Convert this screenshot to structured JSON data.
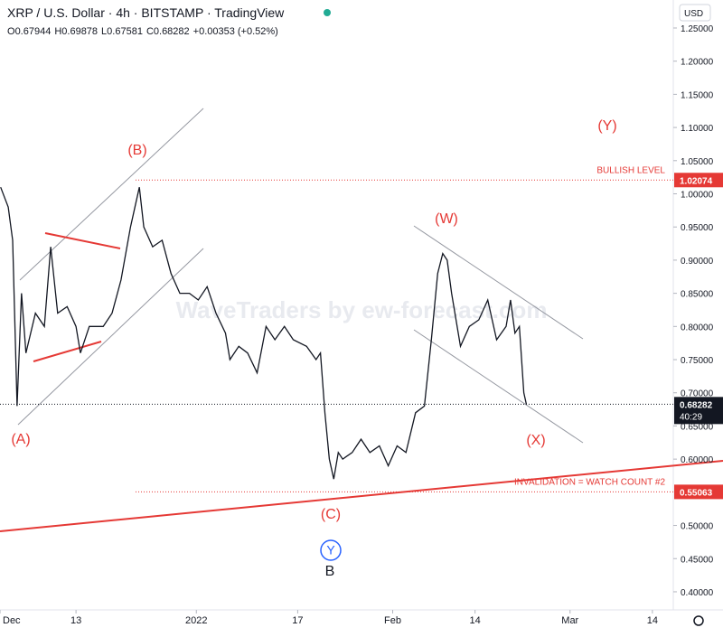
{
  "header": {
    "title": "XRP / U.S. Dollar · 4h · BITSTAMP · TradingView",
    "ohlc": [
      {
        "key": "O",
        "value": "0.67944"
      },
      {
        "key": "H",
        "value": "0.69878"
      },
      {
        "key": "L",
        "value": "0.67581"
      },
      {
        "key": "C",
        "value": "0.68282"
      }
    ],
    "change": "+0.00353 (+0.52%)",
    "currency": "USD"
  },
  "chart_data": {
    "type": "line",
    "watermark": "WaveTraders by ew-forecast.com",
    "series": [
      {
        "name": "XRP/USD",
        "color": "#131722",
        "x": [
          0.1,
          1.3,
          2,
          2.7,
          3.4,
          4.1,
          5.6,
          7,
          8,
          9.1,
          10.6,
          12,
          12.7,
          14.1,
          16.3,
          17.7,
          19.1,
          20.6,
          21.3,
          22,
          22.7,
          24.1,
          25.6,
          27,
          28.4,
          29.9,
          31.3,
          32.7,
          34.1,
          35.6,
          36.3,
          37.7,
          39.1,
          40.6,
          42,
          43.4,
          44.9,
          46.3,
          48.4,
          49.9,
          50.6,
          51.3,
          52,
          52.7,
          53.4,
          54.1,
          55.6,
          57,
          58.4,
          59.9,
          61.3,
          62.7,
          64.1,
          65.6,
          67,
          68.1,
          69.1,
          69.9,
          70.6,
          71.3,
          72.7,
          74.1,
          75.6,
          77,
          78.4,
          79.9,
          80.6,
          81.3,
          82,
          82.7,
          83.1
        ],
        "values": [
          1.01,
          0.98,
          0.93,
          0.68,
          0.85,
          0.76,
          0.82,
          0.8,
          0.92,
          0.82,
          0.83,
          0.8,
          0.76,
          0.8,
          0.8,
          0.82,
          0.87,
          0.95,
          0.98,
          1.01,
          0.95,
          0.92,
          0.93,
          0.88,
          0.85,
          0.85,
          0.84,
          0.86,
          0.82,
          0.79,
          0.75,
          0.77,
          0.76,
          0.73,
          0.8,
          0.78,
          0.8,
          0.78,
          0.77,
          0.75,
          0.76,
          0.67,
          0.6,
          0.57,
          0.61,
          0.6,
          0.61,
          0.63,
          0.61,
          0.62,
          0.59,
          0.62,
          0.61,
          0.67,
          0.68,
          0.78,
          0.88,
          0.91,
          0.9,
          0.85,
          0.77,
          0.8,
          0.81,
          0.84,
          0.78,
          0.8,
          0.84,
          0.79,
          0.8,
          0.7,
          0.68282
        ]
      }
    ],
    "xlim": [
      0,
      106.3
    ],
    "xticks": [
      {
        "value": 0,
        "label": "Dec"
      },
      {
        "value": 12,
        "label": "13"
      },
      {
        "value": 31,
        "label": "2022"
      },
      {
        "value": 47,
        "label": "17"
      },
      {
        "value": 62,
        "label": "Feb"
      },
      {
        "value": 75,
        "label": "14"
      },
      {
        "value": 90,
        "label": "Mar"
      },
      {
        "value": 103,
        "label": "14"
      }
    ],
    "ylim": [
      0.3727,
      1.2922
    ],
    "yticks": [
      {
        "value": 0.4,
        "label": "0.40000"
      },
      {
        "value": 0.45,
        "label": "0.45000"
      },
      {
        "value": 0.5,
        "label": "0.50000"
      },
      {
        "value": 0.6,
        "label": "0.60000"
      },
      {
        "value": 0.65,
        "label": "0.65000"
      },
      {
        "value": 0.7,
        "label": "0.70000"
      },
      {
        "value": 0.75,
        "label": "0.75000"
      },
      {
        "value": 0.8,
        "label": "0.80000"
      },
      {
        "value": 0.85,
        "label": "0.85000"
      },
      {
        "value": 0.9,
        "label": "0.90000"
      },
      {
        "value": 0.95,
        "label": "0.95000"
      },
      {
        "value": 1.0,
        "label": "1.00000"
      },
      {
        "value": 1.05,
        "label": "1.05000"
      },
      {
        "value": 1.1,
        "label": "1.10000"
      },
      {
        "value": 1.15,
        "label": "1.15000"
      },
      {
        "value": 1.2,
        "label": "1.20000"
      },
      {
        "value": 1.25,
        "label": "1.25000"
      }
    ],
    "levels": [
      {
        "label": "BULLISH LEVEL",
        "value": 1.02074,
        "color": "#e53935"
      },
      {
        "label": "INVALIDATION = WATCH COUNT #2",
        "value": 0.55063,
        "color": "#e53935"
      }
    ],
    "last_price": {
      "value": 0.68282,
      "countdown": "40:29"
    },
    "wave_labels": [
      "(A)",
      "(B)",
      "(C)",
      "(W)",
      "(X)",
      "(Y)",
      "Y",
      "B"
    ]
  }
}
